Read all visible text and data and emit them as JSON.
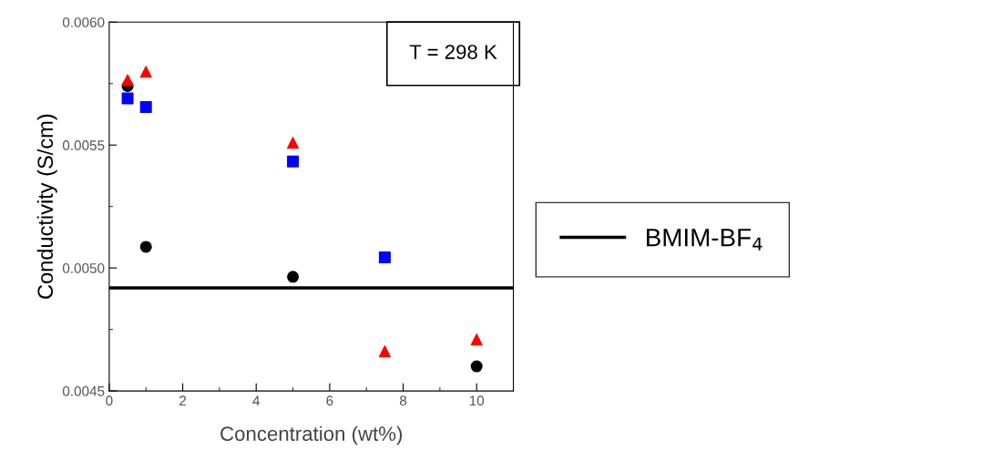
{
  "chart_data": {
    "type": "scatter",
    "xlabel": "Concentration (wt%)",
    "ylabel": "Conductivity (S/cm)",
    "xlim": [
      0,
      11
    ],
    "xticks": [
      0,
      2,
      4,
      6,
      8,
      10
    ],
    "ylim": [
      0.0045,
      0.006
    ],
    "yticks": [
      {
        "value": 0.0045,
        "label": "0.0045"
      },
      {
        "value": 0.005,
        "label": "0.0050"
      },
      {
        "value": 0.0055,
        "label": "0.0055"
      },
      {
        "value": 0.006,
        "label": "0.0060"
      }
    ],
    "series": [
      {
        "color": "#000000",
        "marker": "circle",
        "x": [
          0.5,
          1,
          5,
          10
        ],
        "values": [
          0.00574,
          0.005086,
          0.004964,
          0.0046
        ]
      },
      {
        "color": "#0000ff",
        "marker": "square",
        "x": [
          0.5,
          1,
          5,
          7.5
        ],
        "values": [
          0.00569,
          0.005655,
          0.005433,
          0.005043
        ]
      },
      {
        "color": "#ff0000",
        "marker": "triangle",
        "x": [
          0.5,
          1,
          5,
          7.5,
          10
        ],
        "values": [
          0.005764,
          0.005798,
          0.005509,
          0.004661,
          0.004709
        ]
      }
    ],
    "ref_lines": [
      {
        "axis": "y",
        "value": 0.004919,
        "label": "BMIM-BF$_{4}$",
        "color": "#000000",
        "line_style": "solid"
      }
    ],
    "annotations": [
      "T = 298 K"
    ],
    "legend": "right",
    "grid": false
  }
}
